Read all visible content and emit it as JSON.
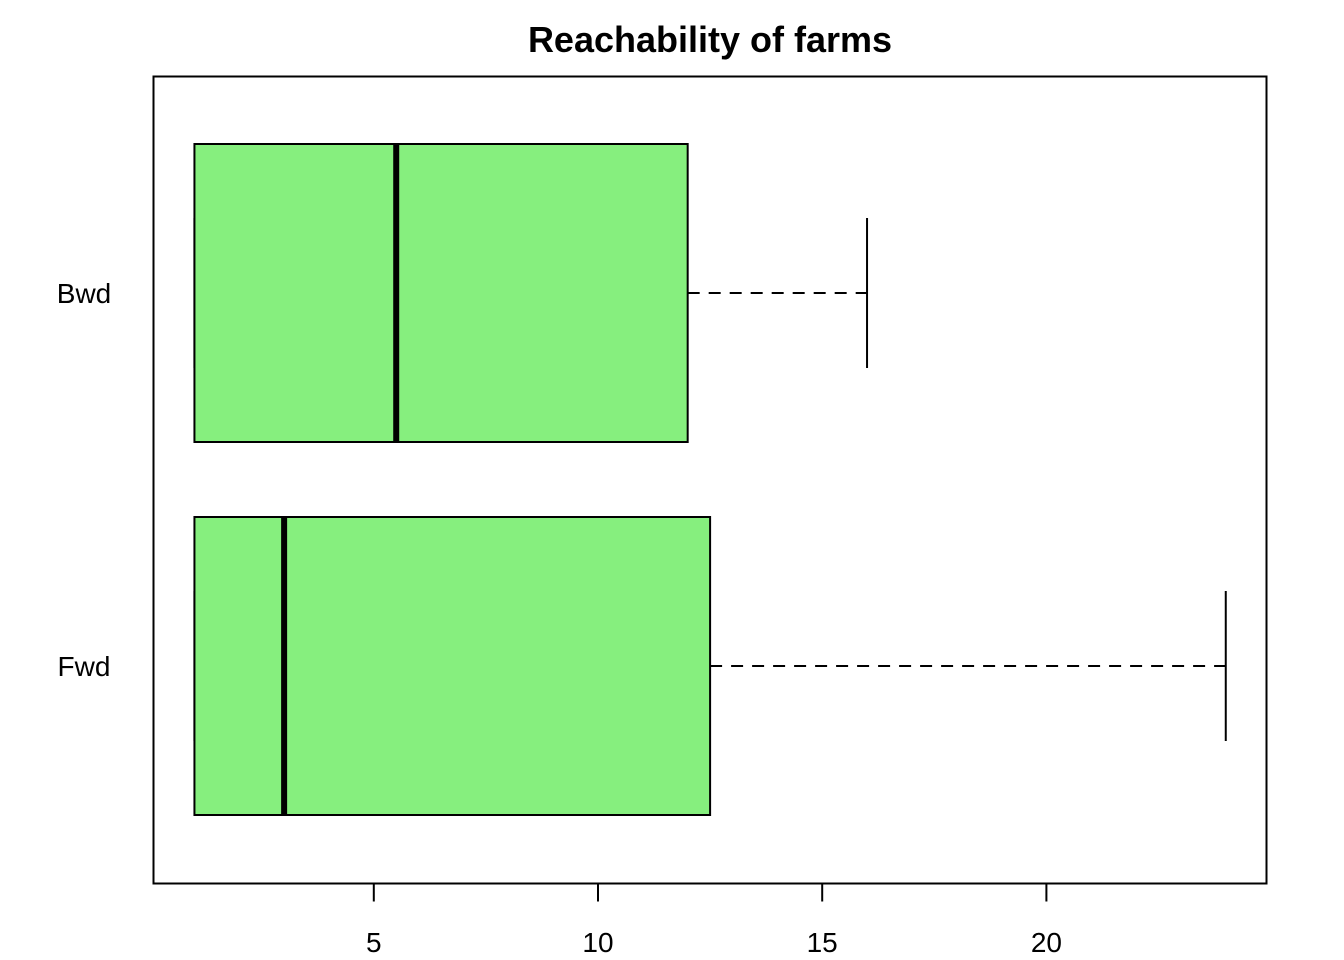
{
  "chart_data": {
    "type": "boxplot",
    "orientation": "horizontal",
    "title": "Reachability of farms",
    "xlabel": "",
    "ylabel": "",
    "xlim": [
      0.1,
      24.9
    ],
    "x_ticks": [
      5,
      10,
      15,
      20
    ],
    "x_tick_labels": [
      "5",
      "10",
      "15",
      "20"
    ],
    "grid": false,
    "box_color": "#86EF7E",
    "categories": [
      "Fwd",
      "Bwd"
    ],
    "boxes": [
      {
        "category": "Fwd",
        "whisker_low": 1,
        "q1": 1,
        "median": 3,
        "q3": 12.5,
        "whisker_high": 24
      },
      {
        "category": "Bwd",
        "whisker_low": 1,
        "q1": 1,
        "median": 5.5,
        "q3": 12,
        "whisker_high": 16
      }
    ]
  }
}
